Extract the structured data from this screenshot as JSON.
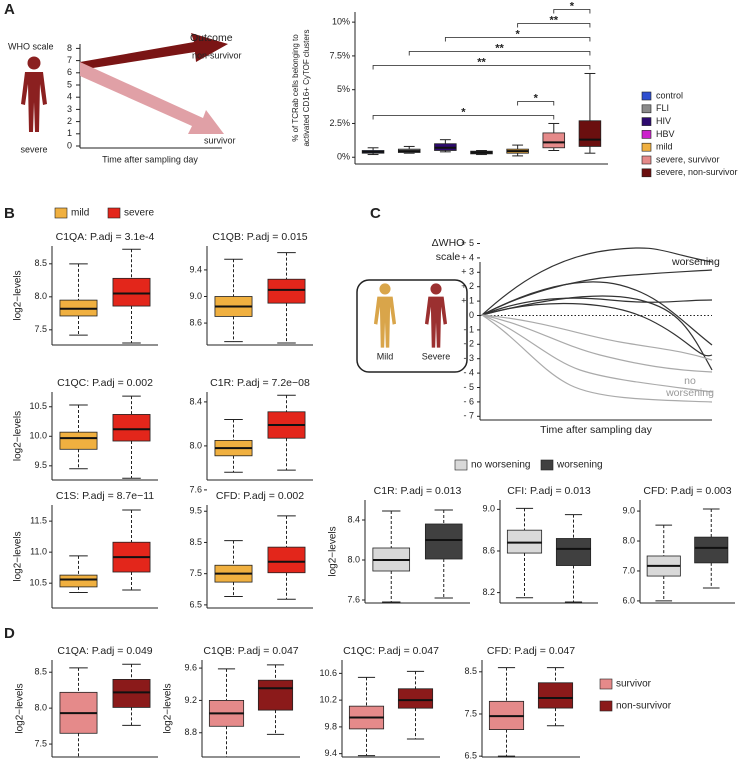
{
  "panel_labels": [
    "A",
    "B",
    "C",
    "D"
  ],
  "diagram_a": {
    "y_label": "WHO scale",
    "yticks": [
      0,
      1,
      2,
      3,
      4,
      5,
      6,
      7,
      8
    ],
    "x_label": "Time after sampling day",
    "outcome": "Outcome",
    "upper_arrow": "non-survivor",
    "lower_arrow": "survivor",
    "figure_label": "severe"
  },
  "legend_b": [
    {
      "name": "mild",
      "color": "#f0b040"
    },
    {
      "name": "severe",
      "color": "#e3261b"
    }
  ],
  "diagram_c": {
    "y_label": [
      "ΔWHO",
      "scale"
    ],
    "yticks": [
      {
        "value": 5,
        "label": "+ 5"
      },
      {
        "value": 4,
        "label": "+ 4"
      },
      {
        "value": 3,
        "label": "+ 3"
      },
      {
        "value": 2,
        "label": "+ 2"
      },
      {
        "value": 1,
        "label": "+ 1"
      },
      0,
      {
        "value": -1,
        "label": "- 1"
      },
      {
        "value": -2,
        "label": "- 2"
      },
      {
        "value": -3,
        "label": "- 3"
      },
      {
        "value": -4,
        "label": "- 4"
      },
      {
        "value": -5,
        "label": "- 5"
      },
      {
        "value": -6,
        "label": "- 6"
      },
      {
        "value": -7,
        "label": "- 7"
      }
    ],
    "x_label": "Time after sampling day",
    "worsening": "worsening",
    "no_worsening": [
      "no",
      "worsening"
    ],
    "mild": "Mild",
    "severe": "Severe"
  },
  "legend_c": [
    {
      "name": "no worsening",
      "color": "#d9d9d9"
    },
    {
      "name": "worsening",
      "color": "#404040"
    }
  ],
  "legend_d": [
    {
      "name": "survivor",
      "color": "#e58a8a"
    },
    {
      "name": "non-survivor",
      "color": "#8b1a1a"
    }
  ],
  "chart_data": [
    {
      "type": "box",
      "y_label": [
        "% of TCRab cells belonging to",
        "activated CD16+ CyTOF clusters"
      ],
      "ylim": [
        -0.5,
        10.75
      ],
      "yticks": [
        {
          "value": 0,
          "label": "0%"
        },
        {
          "value": 2.5,
          "label": "2.5%"
        },
        {
          "value": 5,
          "label": "5%"
        },
        {
          "value": 7.5,
          "label": "7.5%"
        },
        {
          "value": 10,
          "label": "10%"
        }
      ],
      "dashed_whiskers": false,
      "series": [
        {
          "name": "control",
          "color": "#2f4fd0",
          "low": 0.2,
          "q1": 0.3,
          "median": 0.4,
          "q3": 0.5,
          "high": 0.7
        },
        {
          "name": "FLI",
          "color": "#8a8a8a",
          "low": 0.3,
          "q1": 0.35,
          "median": 0.45,
          "q3": 0.6,
          "high": 0.8
        },
        {
          "name": "HIV",
          "color": "#2d0a6e",
          "low": 0.4,
          "q1": 0.5,
          "median": 0.7,
          "q3": 1.0,
          "high": 1.3
        },
        {
          "name": "HBV",
          "color": "#cc22cc",
          "low": 0.2,
          "q1": 0.25,
          "median": 0.35,
          "q3": 0.45,
          "high": 0.5
        },
        {
          "name": "mild",
          "color": "#f0b040",
          "low": 0.1,
          "q1": 0.3,
          "median": 0.45,
          "q3": 0.6,
          "high": 0.9
        },
        {
          "name": "severe, survivor",
          "color": "#e58a8a",
          "low": 0.5,
          "q1": 0.7,
          "median": 1.1,
          "q3": 1.8,
          "high": 2.5
        },
        {
          "name": "severe, non-survivor",
          "color": "#6b0f0f",
          "low": 0.3,
          "q1": 0.8,
          "median": 1.3,
          "q3": 2.7,
          "high": 6.2
        }
      ],
      "comparisons": [
        {
          "groups": [
            "control",
            "severe, survivor"
          ],
          "label": "*"
        },
        {
          "groups": [
            "mild",
            "severe, survivor"
          ],
          "label": "*"
        },
        {
          "groups": [
            "control",
            "severe, non-survivor"
          ],
          "label": "**"
        },
        {
          "groups": [
            "FLI",
            "severe, non-survivor"
          ],
          "label": "**"
        },
        {
          "groups": [
            "HIV",
            "severe, non-survivor"
          ],
          "label": "*"
        },
        {
          "groups": [
            "mild",
            "severe, non-survivor"
          ],
          "label": "**"
        },
        {
          "groups": [
            "severe, survivor",
            "severe, non-survivor"
          ],
          "label": "*"
        }
      ]
    },
    {
      "type": "box",
      "title": "C1QA: P.adj = 3.1e-4",
      "y_label": "log2−levels",
      "ylim": [
        7.27,
        8.77
      ],
      "yticks": [
        7.5,
        {
          "value": 8,
          "label": "8.0"
        },
        8.5
      ],
      "dashed_whiskers": true,
      "series": [
        {
          "color": "#f0b040",
          "low": 7.42,
          "q1": 7.71,
          "median": 7.82,
          "q3": 7.95,
          "high": 8.5
        },
        {
          "color": "#e3261b",
          "low": 7.3,
          "q1": 7.86,
          "median": 8.05,
          "q3": 8.28,
          "high": 8.72
        }
      ]
    },
    {
      "type": "box",
      "title": "C1QB: P.adj = 0.015",
      "ylim": [
        8.27,
        9.76
      ],
      "yticks": [
        8.6,
        {
          "value": 9,
          "label": "9.0"
        },
        9.4
      ],
      "dashed_whiskers": true,
      "series": [
        {
          "color": "#f0b040",
          "low": 8.32,
          "q1": 8.7,
          "median": 8.85,
          "q3": 9.0,
          "high": 9.56
        },
        {
          "color": "#e3261b",
          "low": 8.3,
          "q1": 8.9,
          "median": 9.1,
          "q3": 9.26,
          "high": 9.66
        }
      ]
    },
    {
      "type": "box",
      "title": "C1QC: P.adj = 0.002",
      "y_label": "log2−levels",
      "ylim": [
        9.26,
        10.75
      ],
      "yticks": [
        9.5,
        {
          "value": 10,
          "label": "10.0"
        },
        10.5
      ],
      "dashed_whiskers": true,
      "series": [
        {
          "color": "#f0b040",
          "low": 9.45,
          "q1": 9.78,
          "median": 9.97,
          "q3": 10.07,
          "high": 10.53
        },
        {
          "color": "#e3261b",
          "low": 9.29,
          "q1": 9.92,
          "median": 10.12,
          "q3": 10.37,
          "high": 10.68
        }
      ]
    },
    {
      "type": "box",
      "title": "C1R: P.adj = 7.2e−08",
      "ylim": [
        7.69,
        8.49
      ],
      "yticks": [
        7.6,
        {
          "value": 8,
          "label": "8.0"
        },
        8.4
      ],
      "dashed_whiskers": true,
      "series": [
        {
          "color": "#f0b040",
          "low": 7.76,
          "q1": 7.91,
          "median": 7.98,
          "q3": 8.05,
          "high": 8.24
        },
        {
          "color": "#e3261b",
          "low": 7.78,
          "q1": 8.07,
          "median": 8.19,
          "q3": 8.31,
          "high": 8.46
        }
      ]
    },
    {
      "type": "box",
      "title": "C1S: P.adj = 8.7e−11",
      "y_label": "log2−levels",
      "ylim": [
        10.1,
        11.76
      ],
      "yticks": [
        10.5,
        {
          "value": 11,
          "label": "11.0"
        },
        11.5
      ],
      "dashed_whiskers": true,
      "series": [
        {
          "color": "#f0b040",
          "low": 10.35,
          "q1": 10.44,
          "median": 10.56,
          "q3": 10.63,
          "high": 10.94
        },
        {
          "color": "#e3261b",
          "low": 10.39,
          "q1": 10.68,
          "median": 10.92,
          "q3": 11.16,
          "high": 11.68
        }
      ]
    },
    {
      "type": "box",
      "title": "CFD: P.adj = 0.002",
      "ylim": [
        6.4,
        9.7
      ],
      "yticks": [
        6.5,
        7.5,
        8.5,
        9.5
      ],
      "dashed_whiskers": true,
      "series": [
        {
          "color": "#f0b040",
          "low": 6.77,
          "q1": 7.23,
          "median": 7.5,
          "q3": 7.77,
          "high": 8.56
        },
        {
          "color": "#e3261b",
          "low": 6.68,
          "q1": 7.53,
          "median": 7.88,
          "q3": 8.35,
          "high": 9.35
        }
      ]
    },
    {
      "type": "box",
      "title": "C1R: P.adj = 0.013",
      "y_label": "log2−levels",
      "ylim": [
        7.57,
        8.6
      ],
      "yticks": [
        7.6,
        {
          "value": 8,
          "label": "8.0"
        },
        8.4
      ],
      "dashed_whiskers": true,
      "series": [
        {
          "color": "#d9d9d9",
          "low": 7.58,
          "q1": 7.89,
          "median": 8.0,
          "q3": 8.12,
          "high": 8.49
        },
        {
          "color": "#404040",
          "low": 7.62,
          "q1": 8.01,
          "median": 8.2,
          "q3": 8.36,
          "high": 8.5
        }
      ]
    },
    {
      "type": "box",
      "title": "CFI: P.adj = 0.013",
      "ylim": [
        8.1,
        9.09
      ],
      "yticks": [
        8.2,
        8.6,
        {
          "value": 9,
          "label": "9.0"
        }
      ],
      "dashed_whiskers": true,
      "series": [
        {
          "color": "#d9d9d9",
          "low": 8.15,
          "q1": 8.58,
          "median": 8.68,
          "q3": 8.8,
          "high": 9.01
        },
        {
          "color": "#404040",
          "low": 8.11,
          "q1": 8.46,
          "median": 8.62,
          "q3": 8.72,
          "high": 8.95
        }
      ]
    },
    {
      "type": "box",
      "title": "CFD: P.adj = 0.003",
      "ylim": [
        5.93,
        9.37
      ],
      "yticks": [
        {
          "value": 6,
          "label": "6.0"
        },
        {
          "value": 7,
          "label": "7.0"
        },
        {
          "value": 8,
          "label": "8.0"
        },
        {
          "value": 9,
          "label": "9.0"
        }
      ],
      "dashed_whiskers": true,
      "series": [
        {
          "color": "#d9d9d9",
          "low": 6.0,
          "q1": 6.83,
          "median": 7.17,
          "q3": 7.5,
          "high": 8.53
        },
        {
          "color": "#404040",
          "low": 6.43,
          "q1": 7.27,
          "median": 7.77,
          "q3": 8.13,
          "high": 9.07
        }
      ]
    },
    {
      "type": "box",
      "title": "C1QA: P.adj = 0.049",
      "y_label": "log2−levels",
      "ylim": [
        7.32,
        8.67
      ],
      "yticks": [
        7.5,
        {
          "value": 8,
          "label": "8.0"
        },
        8.5
      ],
      "dashed_whiskers": true,
      "series": [
        {
          "color": "#e58a8a",
          "low": 7.32,
          "q1": 7.65,
          "median": 7.93,
          "q3": 8.22,
          "high": 8.56
        },
        {
          "color": "#8b1a1a",
          "low": 7.76,
          "q1": 8.01,
          "median": 8.22,
          "q3": 8.4,
          "high": 8.61
        }
      ]
    },
    {
      "type": "box",
      "title": "C1QB: P.adj = 0.047",
      "y_label": "log2−levels",
      "ylim": [
        8.5,
        9.7
      ],
      "yticks": [
        8.8,
        9.2,
        9.6
      ],
      "dashed_whiskers": true,
      "series": [
        {
          "color": "#e58a8a",
          "low": 8.5,
          "q1": 8.88,
          "median": 9.04,
          "q3": 9.2,
          "high": 9.59
        },
        {
          "color": "#8b1a1a",
          "low": 8.78,
          "q1": 9.08,
          "median": 9.35,
          "q3": 9.45,
          "high": 9.64
        }
      ]
    },
    {
      "type": "box",
      "title": "C1QC: P.adj = 0.047",
      "ylim": [
        9.35,
        10.8
      ],
      "yticks": [
        9.4,
        9.8,
        10.2,
        10.6
      ],
      "dashed_whiskers": true,
      "series": [
        {
          "color": "#e58a8a",
          "low": 9.37,
          "q1": 9.77,
          "median": 9.94,
          "q3": 10.11,
          "high": 10.54
        },
        {
          "color": "#8b1a1a",
          "low": 9.62,
          "q1": 10.08,
          "median": 10.2,
          "q3": 10.37,
          "high": 10.63
        }
      ]
    },
    {
      "type": "box",
      "title": "CFD: P.adj = 0.047",
      "ylim": [
        6.48,
        8.78
      ],
      "yticks": [
        6.5,
        7.5,
        8.5
      ],
      "dashed_whiskers": true,
      "series": [
        {
          "color": "#e58a8a",
          "low": 6.5,
          "q1": 7.13,
          "median": 7.45,
          "q3": 7.8,
          "high": 8.6
        },
        {
          "color": "#8b1a1a",
          "low": 7.22,
          "q1": 7.64,
          "median": 7.88,
          "q3": 8.24,
          "high": 8.6
        }
      ]
    }
  ]
}
